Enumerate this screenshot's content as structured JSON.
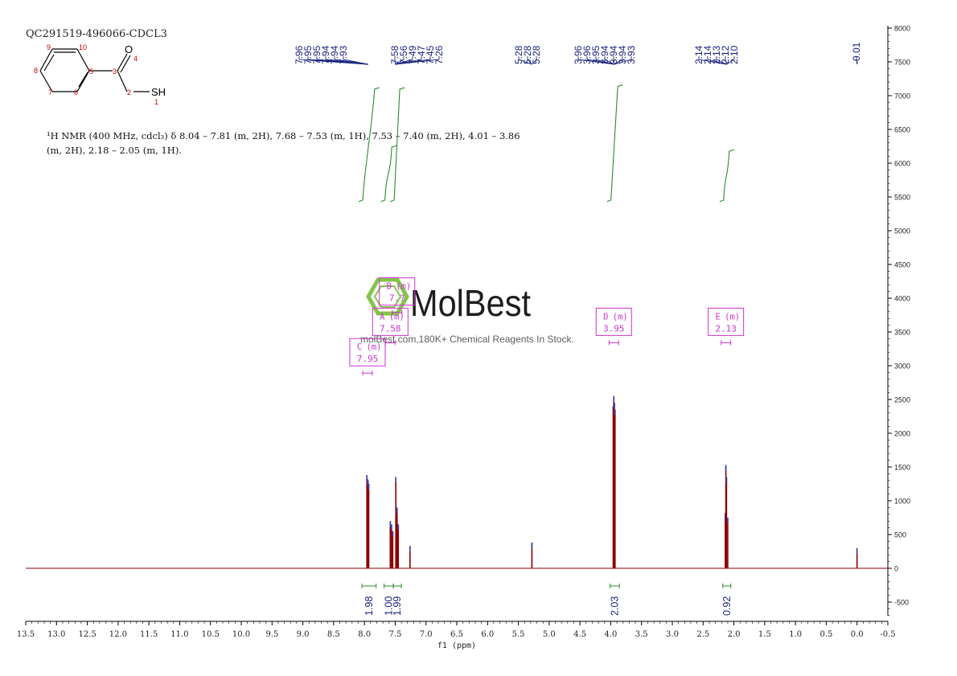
{
  "header": {
    "sample_id": "QC291519-496066-CDCL3",
    "nmr_summary_line1": "¹H NMR (400 MHz, cdcl₃) δ 8.04 – 7.81 (m, 2H), 7.68 – 7.53 (m, 1H), 7.53 – 7.40 (m, 2H), 4.01 – 3.86",
    "nmr_summary_line2": "(m, 2H), 2.18 – 2.05 (m, 1H)."
  },
  "structure": {
    "atom_labels": [
      "O",
      "4",
      "9",
      "10",
      "8",
      "5",
      "3",
      "7",
      "6",
      "2",
      "SH",
      "1"
    ],
    "colors": {
      "bond": "#000000",
      "number": "#cc0000"
    }
  },
  "watermark": {
    "brand": "MolBest",
    "tagline": "molBest.com,180K+ Chemical Reagents In Stock.",
    "color": "#7dc242"
  },
  "colors": {
    "spectrum": "#8b0000",
    "peak_label": "#1a237e",
    "integral": "#2e8b2e",
    "multiplet_box": "#cc33cc",
    "axis": "#000000"
  },
  "chart_data": {
    "type": "line",
    "xlabel": "f1 (ppm)",
    "xlim": [
      13.5,
      -0.5
    ],
    "ylim": [
      -700,
      8000
    ],
    "x_ticks": [
      "13.5",
      "13.0",
      "12.5",
      "12.0",
      "11.5",
      "11.0",
      "10.5",
      "10.0",
      "9.5",
      "9.0",
      "8.5",
      "8.0",
      "7.5",
      "7.0",
      "6.5",
      "6.0",
      "5.5",
      "5.0",
      "4.5",
      "4.0",
      "3.5",
      "3.0",
      "2.5",
      "2.0",
      "1.5",
      "1.0",
      "0.5",
      "0.0",
      "-0.5"
    ],
    "y_ticks": [
      "8000",
      "7500",
      "7000",
      "6500",
      "6000",
      "5500",
      "5000",
      "4500",
      "4000",
      "3500",
      "3000",
      "2500",
      "2000",
      "1500",
      "1000",
      "500",
      "0",
      "-500"
    ],
    "peaks": [
      {
        "ppm": 7.96,
        "height": 1380
      },
      {
        "ppm": 7.95,
        "height": 1320
      },
      {
        "ppm": 7.94,
        "height": 1300
      },
      {
        "ppm": 7.93,
        "height": 1250
      },
      {
        "ppm": 7.58,
        "height": 700
      },
      {
        "ppm": 7.56,
        "height": 650
      },
      {
        "ppm": 7.54,
        "height": 550
      },
      {
        "ppm": 7.49,
        "height": 1350
      },
      {
        "ppm": 7.47,
        "height": 900
      },
      {
        "ppm": 7.45,
        "height": 650
      },
      {
        "ppm": 7.26,
        "height": 330
      },
      {
        "ppm": 5.28,
        "height": 380
      },
      {
        "ppm": 3.96,
        "height": 2400
      },
      {
        "ppm": 3.95,
        "height": 2550
      },
      {
        "ppm": 3.94,
        "height": 2450
      },
      {
        "ppm": 3.93,
        "height": 2350
      },
      {
        "ppm": 2.14,
        "height": 820
      },
      {
        "ppm": 2.13,
        "height": 1530
      },
      {
        "ppm": 2.12,
        "height": 1350
      },
      {
        "ppm": 2.1,
        "height": 750
      },
      {
        "ppm": 0.0,
        "height": 300
      }
    ],
    "peak_label_groups": [
      {
        "labels": [
          "7.96",
          "7.95",
          "7.95",
          "7.94",
          "7.94",
          "7.93"
        ],
        "target_ppm": 7.94
      },
      {
        "labels": [
          "7.58",
          "7.56",
          "7.49",
          "7.47",
          "7.45",
          "7.26"
        ],
        "target_ppm": 7.5
      },
      {
        "labels": [
          "5.28",
          "5.28",
          "5.28"
        ],
        "target_ppm": 5.28
      },
      {
        "labels": [
          "3.96",
          "3.96",
          "3.95",
          "3.94",
          "3.94",
          "3.94",
          "3.93"
        ],
        "target_ppm": 3.94
      },
      {
        "labels": [
          "2.14",
          "2.14",
          "2.13",
          "2.12",
          "2.10"
        ],
        "target_ppm": 2.12
      },
      {
        "labels": [
          "-0.01"
        ],
        "target_ppm": 0.0
      }
    ],
    "integrals": [
      {
        "from": 8.04,
        "to": 7.81,
        "value": "1.98",
        "y_low": 5430,
        "y_high": 7120
      },
      {
        "from": 7.68,
        "to": 7.53,
        "value": "1.00",
        "y_low": 5430,
        "y_high": 6260
      },
      {
        "from": 7.53,
        "to": 7.4,
        "value": "1.99",
        "y_low": 5430,
        "y_high": 7120
      },
      {
        "from": 4.01,
        "to": 3.86,
        "value": "2.03",
        "y_low": 5430,
        "y_high": 7160
      },
      {
        "from": 2.18,
        "to": 2.05,
        "value": "0.92",
        "y_low": 5430,
        "y_high": 6200
      }
    ],
    "multiplets": [
      {
        "letter": "B",
        "kind": "(m)",
        "shift": "7.?",
        "ppm": 7.47,
        "y": 4100
      },
      {
        "letter": "A",
        "kind": "(m)",
        "shift": "7.58",
        "ppm": 7.58,
        "y": 3650
      },
      {
        "letter": "C",
        "kind": "(m)",
        "shift": "7.95",
        "ppm": 7.95,
        "y": 3200
      },
      {
        "letter": "D",
        "kind": "(m)",
        "shift": "3.95",
        "ppm": 3.95,
        "y": 3650
      },
      {
        "letter": "E",
        "kind": "(m)",
        "shift": "2.13",
        "ppm": 2.13,
        "y": 3650
      }
    ]
  }
}
